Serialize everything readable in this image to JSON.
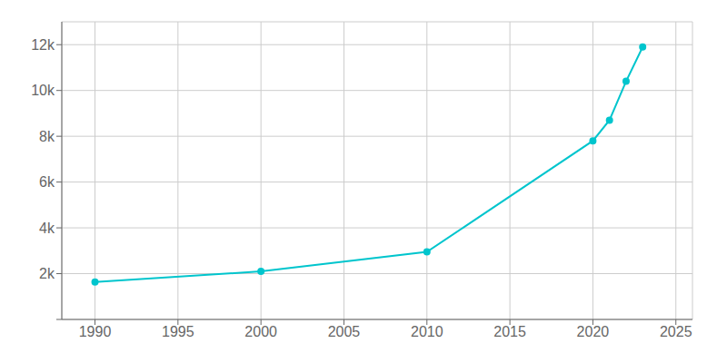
{
  "chart_data": {
    "type": "line",
    "x": [
      1990,
      2000,
      2010,
      2020,
      2021,
      2022,
      2023
    ],
    "values": [
      1631,
      2100,
      2950,
      7800,
      8700,
      10400,
      11900
    ],
    "color": "#00c5cd",
    "marker": "circle",
    "xlim": [
      1988,
      2026
    ],
    "ylim": [
      0,
      13000
    ],
    "xticks": [
      1990,
      1995,
      2000,
      2005,
      2010,
      2015,
      2020,
      2025
    ],
    "yticks": [
      {
        "value": 0,
        "label": ""
      },
      {
        "value": 2000,
        "label": "2k"
      },
      {
        "value": 4000,
        "label": "4k"
      },
      {
        "value": 6000,
        "label": "6k"
      },
      {
        "value": 8000,
        "label": "8k"
      },
      {
        "value": 10000,
        "label": "10k"
      },
      {
        "value": 12000,
        "label": "12k"
      }
    ],
    "grid": true
  }
}
